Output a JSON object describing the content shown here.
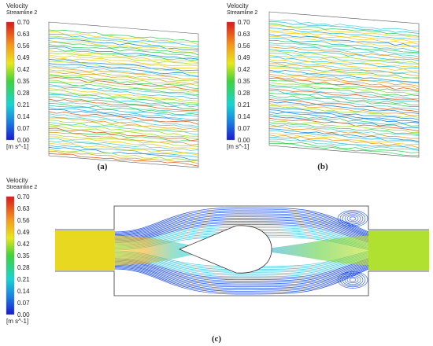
{
  "panels": [
    {
      "legend": {
        "title": "Velocity",
        "subtitle": "Streamline 2",
        "ticks": [
          "0.70",
          "0.63",
          "0.56",
          "0.49",
          "0.42",
          "0.35",
          "0.28",
          "0.21",
          "0.14",
          "0.07",
          "0.00"
        ],
        "unit": "[m s^-1]"
      },
      "caption": "(a)"
    },
    {
      "legend": {
        "title": "Velocity",
        "subtitle": "Streamline 2",
        "ticks": [
          "0.70",
          "0.63",
          "0.56",
          "0.49",
          "0.42",
          "0.35",
          "0.28",
          "0.21",
          "0.14",
          "0.07",
          "0.00"
        ],
        "unit": "[m s^-1]"
      },
      "caption": "(b)"
    },
    {
      "legend": {
        "title": "Velocity",
        "subtitle": "Streamline 2",
        "ticks": [
          "0.70",
          "0.63",
          "0.56",
          "0.49",
          "0.42",
          "0.35",
          "0.28",
          "0.21",
          "0.14",
          "0.07",
          "0.00"
        ],
        "unit": "[m s^-1]"
      },
      "caption": "(c)"
    }
  ]
}
